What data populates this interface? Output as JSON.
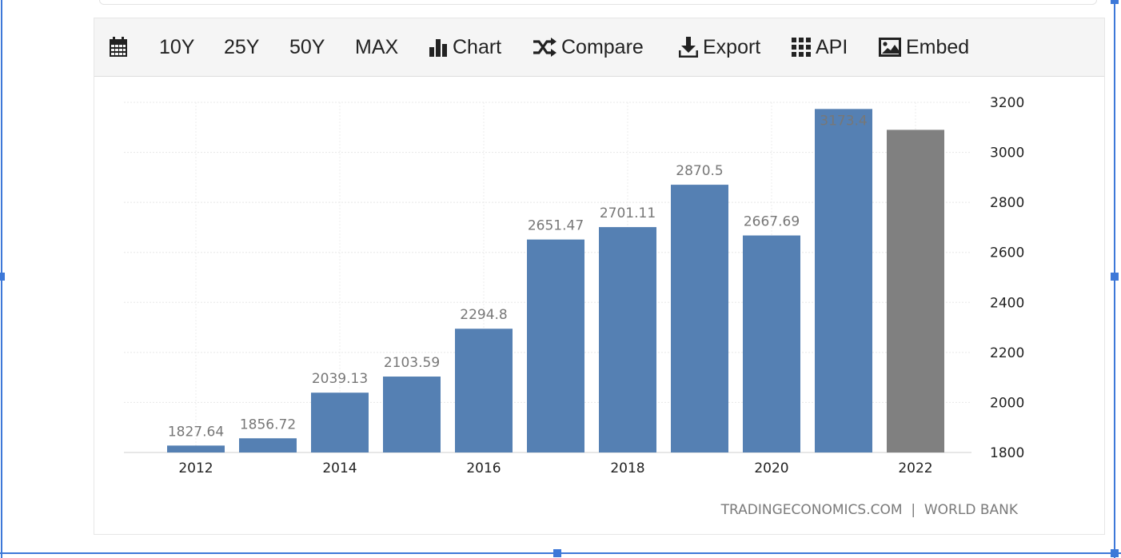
{
  "toolbar": {
    "calendar_icon": "calendar-icon",
    "range_10y": "10Y",
    "range_25y": "25Y",
    "range_50y": "50Y",
    "range_max": "MAX",
    "chart_label": "Chart",
    "compare_label": "Compare",
    "export_label": "Export",
    "api_label": "API",
    "embed_label": "Embed"
  },
  "source_text": "TRADINGECONOMICS.COM  |  WORLD BANK",
  "colors": {
    "bar": "#5580b3",
    "forecast_bar": "#808080",
    "selection": "#3d78d8"
  },
  "chart_data": {
    "type": "bar",
    "x": [
      2012,
      2013,
      2014,
      2015,
      2016,
      2017,
      2018,
      2019,
      2020,
      2021,
      2022
    ],
    "values": [
      1827.64,
      1856.72,
      2039.13,
      2103.59,
      2294.8,
      2651.47,
      2701.11,
      2870.5,
      2667.69,
      3173.4,
      3090
    ],
    "labels": [
      "1827.64",
      "1856.72",
      "2039.13",
      "2103.59",
      "2294.8",
      "2651.47",
      "2701.11",
      "2870.5",
      "2667.69",
      "3173.4",
      ""
    ],
    "x_tick_labels": [
      "2012",
      "2014",
      "2016",
      "2018",
      "2020",
      "2022"
    ],
    "x_ticks": [
      2012,
      2014,
      2016,
      2018,
      2020,
      2022
    ],
    "y_tick_labels": [
      "1800",
      "2000",
      "2200",
      "2400",
      "2600",
      "2800",
      "3000",
      "3200"
    ],
    "y_ticks": [
      1800,
      2000,
      2200,
      2400,
      2600,
      2800,
      3000,
      3200
    ],
    "ylim": [
      1800,
      3200
    ],
    "y_axis_side": "right",
    "grid": true,
    "forecast_index": 10
  }
}
